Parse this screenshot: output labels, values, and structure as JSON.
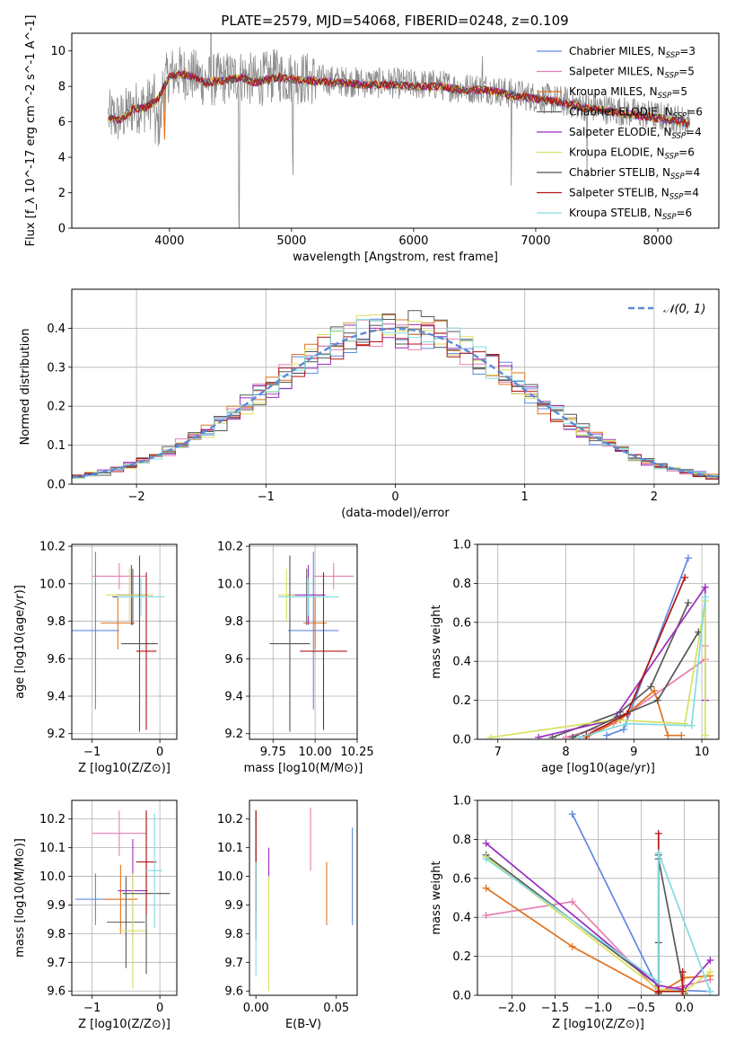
{
  "colors": {
    "series": [
      "#6189e0",
      "#e67fb3",
      "#e0721f",
      "#5a5a5a",
      "#9a2cbf",
      "#d8e060",
      "#555555",
      "#b01515",
      "#80dce0"
    ],
    "grid": "#b0b0b0",
    "gauss": "#5b8ad6"
  },
  "chart_data": [
    {
      "id": "spectrum",
      "type": "line",
      "title": "PLATE=2579, MJD=54068, FIBERID=0248, z=0.109",
      "xlabel": "wavelength [Angstrom, rest frame]",
      "ylabel": "Flux [f_λ 10^-17 erg cm^-2 s^-1 A^-1]",
      "xlim": [
        3200,
        8500
      ],
      "ylim": [
        0,
        11
      ],
      "xticks": [
        4000,
        5000,
        6000,
        7000,
        8000
      ],
      "yticks": [
        0,
        2,
        4,
        6,
        8,
        10
      ],
      "grid": false,
      "legend_position": "top-right",
      "legend": [
        {
          "name": "Chabrier MILES",
          "nssp": "3"
        },
        {
          "name": "Salpeter MILES",
          "nssp": "5"
        },
        {
          "name": "Kroupa MILES",
          "nssp": "5"
        },
        {
          "name": "Chabrier ELODIE",
          "nssp": "6"
        },
        {
          "name": "Salpeter ELODIE",
          "nssp": "4"
        },
        {
          "name": "Kroupa ELODIE",
          "nssp": "6"
        },
        {
          "name": "Chabrier STELIB",
          "nssp": "4"
        },
        {
          "name": "Salpeter STELIB",
          "nssp": "4"
        },
        {
          "name": "Kroupa STELIB",
          "nssp": "6"
        }
      ],
      "data_envelope": {
        "x": [
          3500,
          3600,
          3700,
          3800,
          3900,
          4000,
          4100,
          4200,
          4300,
          4400,
          4500,
          4600,
          4700,
          4800,
          4900,
          5000,
          5200,
          5400,
          5600,
          5800,
          6000,
          6200,
          6400,
          6600,
          6800,
          7000,
          7200,
          7400,
          7600,
          7800,
          8000,
          8200,
          8250
        ],
        "y": [
          6.3,
          6.2,
          6.8,
          6.9,
          7.3,
          8.7,
          8.8,
          8.6,
          8.3,
          8.4,
          8.5,
          8.6,
          8.3,
          8.5,
          8.6,
          8.5,
          8.4,
          8.3,
          8.2,
          8.2,
          8.1,
          8.1,
          7.9,
          7.9,
          7.6,
          7.4,
          7.2,
          6.9,
          6.7,
          6.5,
          6.3,
          6.1,
          6.0
        ]
      }
    },
    {
      "id": "residuals",
      "type": "histogram",
      "xlabel": "(data-model)/error",
      "ylabel": "Normed distribution",
      "xlim": [
        -2.5,
        2.5
      ],
      "ylim": [
        0,
        0.5
      ],
      "xticks": [
        -2,
        -1,
        0,
        1,
        2
      ],
      "yticks": [
        0.0,
        0.1,
        0.2,
        0.3,
        0.4
      ],
      "grid": true,
      "legend_position": "top-right",
      "reference": {
        "label": "𝒩(0, 1)",
        "mean": 0,
        "sigma": 1
      },
      "bin_width": 0.1
    },
    {
      "id": "age-vs-z",
      "type": "errorbar",
      "xlabel": "Z [log10(Z/Z⊙)]",
      "ylabel": "age [log10(age/yr)]",
      "xlim": [
        -1.3,
        0.25
      ],
      "ylim": [
        9.17,
        10.21
      ],
      "xticks": [
        -1,
        0
      ],
      "yticks": [
        9.2,
        9.4,
        9.6,
        9.8,
        10.0,
        10.2
      ],
      "grid": true,
      "points": [
        {
          "x": -0.95,
          "xerr": 0.35,
          "y": 9.75,
          "yerr": 0.42
        },
        {
          "x": -0.6,
          "xerr": 0.4,
          "y": 10.04,
          "yerr": 0.07
        },
        {
          "x": -0.62,
          "xerr": 0.25,
          "y": 9.79,
          "yerr": 0.14
        },
        {
          "x": -0.4,
          "xerr": 0.3,
          "y": 9.93,
          "yerr": 0.15
        },
        {
          "x": -0.42,
          "xerr": 0.22,
          "y": 9.94,
          "yerr": 0.16
        },
        {
          "x": -0.45,
          "xerr": 0.35,
          "y": 9.94,
          "yerr": 0.14
        },
        {
          "x": -0.3,
          "xerr": 0.27,
          "y": 9.68,
          "yerr": 0.47
        },
        {
          "x": -0.2,
          "xerr": 0.15,
          "y": 9.64,
          "yerr": 0.42
        },
        {
          "x": -0.28,
          "xerr": 0.35,
          "y": 9.93,
          "yerr": 0.1
        }
      ]
    },
    {
      "id": "age-vs-mass",
      "type": "errorbar",
      "xlabel": "mass [log10(M/M⊙)]",
      "ylabel": "",
      "xlim": [
        9.61,
        10.25
      ],
      "ylim": [
        9.17,
        10.21
      ],
      "xticks": [
        9.75,
        10.0,
        10.25
      ],
      "yticks": [
        9.2,
        9.4,
        9.6,
        9.8,
        10.0,
        10.2
      ],
      "grid": true,
      "points": [
        {
          "x": 9.99,
          "xerr": 0.15,
          "y": 9.75,
          "yerr": 0.42
        },
        {
          "x": 10.11,
          "xerr": 0.12,
          "y": 10.04,
          "yerr": 0.07
        },
        {
          "x": 10.0,
          "xerr": 0.07,
          "y": 9.79,
          "yerr": 0.14
        },
        {
          "x": 9.95,
          "xerr": 0.12,
          "y": 9.93,
          "yerr": 0.15
        },
        {
          "x": 9.96,
          "xerr": 0.1,
          "y": 9.94,
          "yerr": 0.16
        },
        {
          "x": 9.83,
          "xerr": 0.05,
          "y": 9.94,
          "yerr": 0.14
        },
        {
          "x": 9.85,
          "xerr": 0.12,
          "y": 9.68,
          "yerr": 0.47
        },
        {
          "x": 10.05,
          "xerr": 0.14,
          "y": 9.64,
          "yerr": 0.42
        },
        {
          "x": 9.96,
          "xerr": 0.18,
          "y": 9.93,
          "yerr": 0.1
        }
      ]
    },
    {
      "id": "weight-vs-age",
      "type": "line",
      "xlabel": "age [log10(age/yr)]",
      "ylabel": "mass weight",
      "xlim": [
        6.7,
        10.25
      ],
      "ylim": [
        0,
        1
      ],
      "xticks": [
        7,
        8,
        9,
        10
      ],
      "yticks": [
        0.0,
        0.2,
        0.4,
        0.6,
        0.8,
        1.0
      ],
      "grid": true,
      "series": [
        {
          "x": [
            8.6,
            8.85,
            9.8
          ],
          "y": [
            0.02,
            0.05,
            0.93
          ]
        },
        {
          "x": [
            8.0,
            8.7,
            10.05,
            10.05
          ],
          "y": [
            0.01,
            0.08,
            0.41,
            0.48
          ]
        },
        {
          "x": [
            8.3,
            8.8,
            9.3,
            9.5,
            9.7
          ],
          "y": [
            0.01,
            0.1,
            0.25,
            0.02,
            0.02
          ]
        },
        {
          "x": [
            7.8,
            8.8,
            9.25,
            9.8
          ],
          "y": [
            0.01,
            0.14,
            0.27,
            0.7
          ]
        },
        {
          "x": [
            7.6,
            8.7,
            10.05,
            10.05
          ],
          "y": [
            0.01,
            0.1,
            0.78,
            0.2
          ]
        },
        {
          "x": [
            6.9,
            8.7,
            9.75,
            10.05,
            10.05
          ],
          "y": [
            0.01,
            0.1,
            0.08,
            0.71,
            0.02
          ]
        },
        {
          "x": [
            8.1,
            8.8,
            9.35,
            9.95
          ],
          "y": [
            0.01,
            0.12,
            0.2,
            0.55
          ]
        },
        {
          "x": [
            8.3,
            8.9,
            9.75
          ],
          "y": [
            0.02,
            0.13,
            0.83
          ]
        },
        {
          "x": [
            8.2,
            8.9,
            9.85,
            10.05
          ],
          "y": [
            0.01,
            0.08,
            0.07,
            0.73
          ]
        }
      ]
    },
    {
      "id": "mass-vs-z",
      "type": "errorbar",
      "xlabel": "Z [log10(Z/Z⊙)]",
      "ylabel": "mass [log10(M/M⊙)]",
      "xlim": [
        -1.3,
        0.25
      ],
      "ylim": [
        9.585,
        10.265
      ],
      "xticks": [
        -1,
        0
      ],
      "yticks": [
        9.6,
        9.7,
        9.8,
        9.9,
        10.0,
        10.1,
        10.2
      ],
      "grid": true,
      "points": [
        {
          "x": -0.95,
          "xerr": 0.3,
          "y": 9.92,
          "yerr": 0.09
        },
        {
          "x": -0.6,
          "xerr": 0.4,
          "y": 10.15,
          "yerr": 0.08
        },
        {
          "x": -0.58,
          "xerr": 0.25,
          "y": 9.92,
          "yerr": 0.12
        },
        {
          "x": -0.5,
          "xerr": 0.28,
          "y": 9.84,
          "yerr": 0.16
        },
        {
          "x": -0.4,
          "xerr": 0.22,
          "y": 9.95,
          "yerr": 0.18
        },
        {
          "x": -0.4,
          "xerr": 0.2,
          "y": 9.81,
          "yerr": 0.2
        },
        {
          "x": -0.2,
          "xerr": 0.35,
          "y": 9.94,
          "yerr": 0.28
        },
        {
          "x": -0.2,
          "xerr": 0.15,
          "y": 10.05,
          "yerr": 0.18
        },
        {
          "x": -0.08,
          "xerr": 0.12,
          "y": 10.02,
          "yerr": 0.2
        }
      ]
    },
    {
      "id": "mass-vs-ebv",
      "type": "errorbar",
      "xlabel": "E(B-V)",
      "ylabel": "",
      "xlim": [
        -0.004,
        0.063
      ],
      "ylim": [
        9.585,
        10.265
      ],
      "xticks": [
        0.0,
        0.05
      ],
      "yticks": [
        9.6,
        9.7,
        9.8,
        9.9,
        10.0,
        10.1,
        10.2
      ],
      "grid": false,
      "points": [
        {
          "x": 0.06,
          "xerr": 0,
          "y": 10.0,
          "yerr": 0.17
        },
        {
          "x": 0.034,
          "xerr": 0,
          "y": 10.13,
          "yerr": 0.11
        },
        {
          "x": 0.044,
          "xerr": 0,
          "y": 9.94,
          "yerr": 0.11
        },
        {
          "x": 0.0,
          "xerr": 0,
          "y": 10.06,
          "yerr": 0.17
        },
        {
          "x": 0.008,
          "xerr": 0,
          "y": 10.02,
          "yerr": 0.08
        },
        {
          "x": 0.008,
          "xerr": 0,
          "y": 9.8,
          "yerr": 0.2
        },
        {
          "x": 0.0,
          "xerr": 0,
          "y": 10.0,
          "yerr": 0.22
        },
        {
          "x": 0.0,
          "xerr": 0,
          "y": 10.05,
          "yerr": 0.18
        },
        {
          "x": 0.0,
          "xerr": 0,
          "y": 9.85,
          "yerr": 0.2
        }
      ]
    },
    {
      "id": "weight-vs-z",
      "type": "line",
      "xlabel": "Z [log10(Z/Z⊙)]",
      "ylabel": "mass weight",
      "xlim": [
        -2.4,
        0.4
      ],
      "ylim": [
        0,
        1
      ],
      "xticks": [
        -2.0,
        -1.5,
        -1.0,
        -0.5,
        0.0
      ],
      "yticks": [
        0.0,
        0.2,
        0.4,
        0.6,
        0.8,
        1.0
      ],
      "grid": true,
      "series": [
        {
          "x": [
            -1.3,
            -0.3,
            0.3
          ],
          "y": [
            0.93,
            0.03,
            0.02
          ]
        },
        {
          "x": [
            -2.3,
            -1.3,
            -0.3,
            0.3
          ],
          "y": [
            0.41,
            0.48,
            0.02,
            0.08
          ]
        },
        {
          "x": [
            -2.3,
            -1.3,
            -0.3,
            0.0,
            0.3
          ],
          "y": [
            0.55,
            0.25,
            0.01,
            0.09,
            0.1
          ]
        },
        {
          "x": [
            -2.3,
            -0.3,
            -0.3,
            0.0
          ],
          "y": [
            0.72,
            0.05,
            0.7,
            0.01
          ]
        },
        {
          "x": [
            -2.3,
            -0.3,
            0.0,
            0.3
          ],
          "y": [
            0.78,
            0.05,
            0.03,
            0.18
          ]
        },
        {
          "x": [
            -2.3,
            -0.3,
            0.0,
            0.3
          ],
          "y": [
            0.71,
            0.03,
            0.02,
            0.12
          ]
        },
        {
          "x": [
            -0.3,
            -0.3,
            -0.3
          ],
          "y": [
            0.27,
            0.01,
            0.72
          ]
        },
        {
          "x": [
            -0.3,
            -0.3,
            -0.02,
            -0.02
          ],
          "y": [
            0.83,
            0.02,
            0.02,
            0.12
          ]
        },
        {
          "x": [
            -2.3,
            -0.3,
            -0.3,
            0.3
          ],
          "y": [
            0.7,
            0.07,
            0.73,
            0.02
          ]
        }
      ]
    }
  ]
}
